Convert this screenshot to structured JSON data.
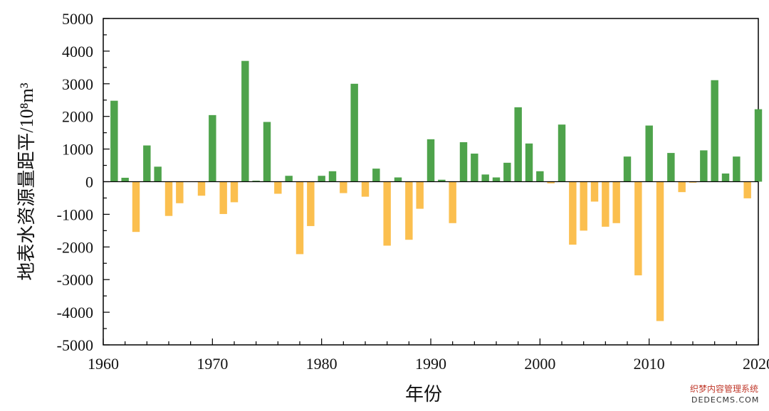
{
  "chart_data": {
    "type": "bar",
    "xlabel": "年份",
    "ylabel": "地表水资源量距平/10⁸m³",
    "ylim": [
      -5000,
      5000
    ],
    "xlim": [
      1960,
      2020
    ],
    "y_ticks": [
      -5000,
      -4000,
      -3000,
      -2000,
      -1000,
      0,
      1000,
      2000,
      3000,
      4000,
      5000
    ],
    "x_ticks": [
      1960,
      1970,
      1980,
      1990,
      2000,
      2010,
      2020
    ],
    "colors": {
      "positive": "#4ea34b",
      "negative": "#fbbf4f"
    },
    "grid": false,
    "x": [
      1961,
      1962,
      1963,
      1964,
      1965,
      1966,
      1967,
      1968,
      1969,
      1970,
      1971,
      1972,
      1973,
      1974,
      1975,
      1976,
      1977,
      1978,
      1979,
      1980,
      1981,
      1982,
      1983,
      1984,
      1985,
      1986,
      1987,
      1988,
      1989,
      1990,
      1991,
      1992,
      1993,
      1994,
      1995,
      1996,
      1997,
      1998,
      1999,
      2000,
      2001,
      2002,
      2003,
      2004,
      2005,
      2006,
      2007,
      2008,
      2009,
      2010,
      2011,
      2012,
      2013,
      2014,
      2015,
      2016,
      2017,
      2018,
      2019,
      2020
    ],
    "values": [
      2480,
      120,
      -1540,
      1110,
      460,
      -1050,
      -660,
      0,
      -430,
      2040,
      -990,
      -630,
      3700,
      30,
      1830,
      -370,
      180,
      -2220,
      -1360,
      180,
      320,
      -350,
      3000,
      -460,
      400,
      -1960,
      130,
      -1780,
      -830,
      1300,
      60,
      -1270,
      1210,
      860,
      220,
      130,
      580,
      2280,
      1170,
      320,
      -50,
      1750,
      -1930,
      -1500,
      -610,
      -1380,
      -1270,
      770,
      -2870,
      1720,
      -4270,
      880,
      -320,
      -30,
      960,
      3110,
      250,
      770,
      -510,
      2220
    ]
  },
  "watermark": {
    "line1": "织梦内容管理系统",
    "line2": "DEDECMS.COM"
  }
}
